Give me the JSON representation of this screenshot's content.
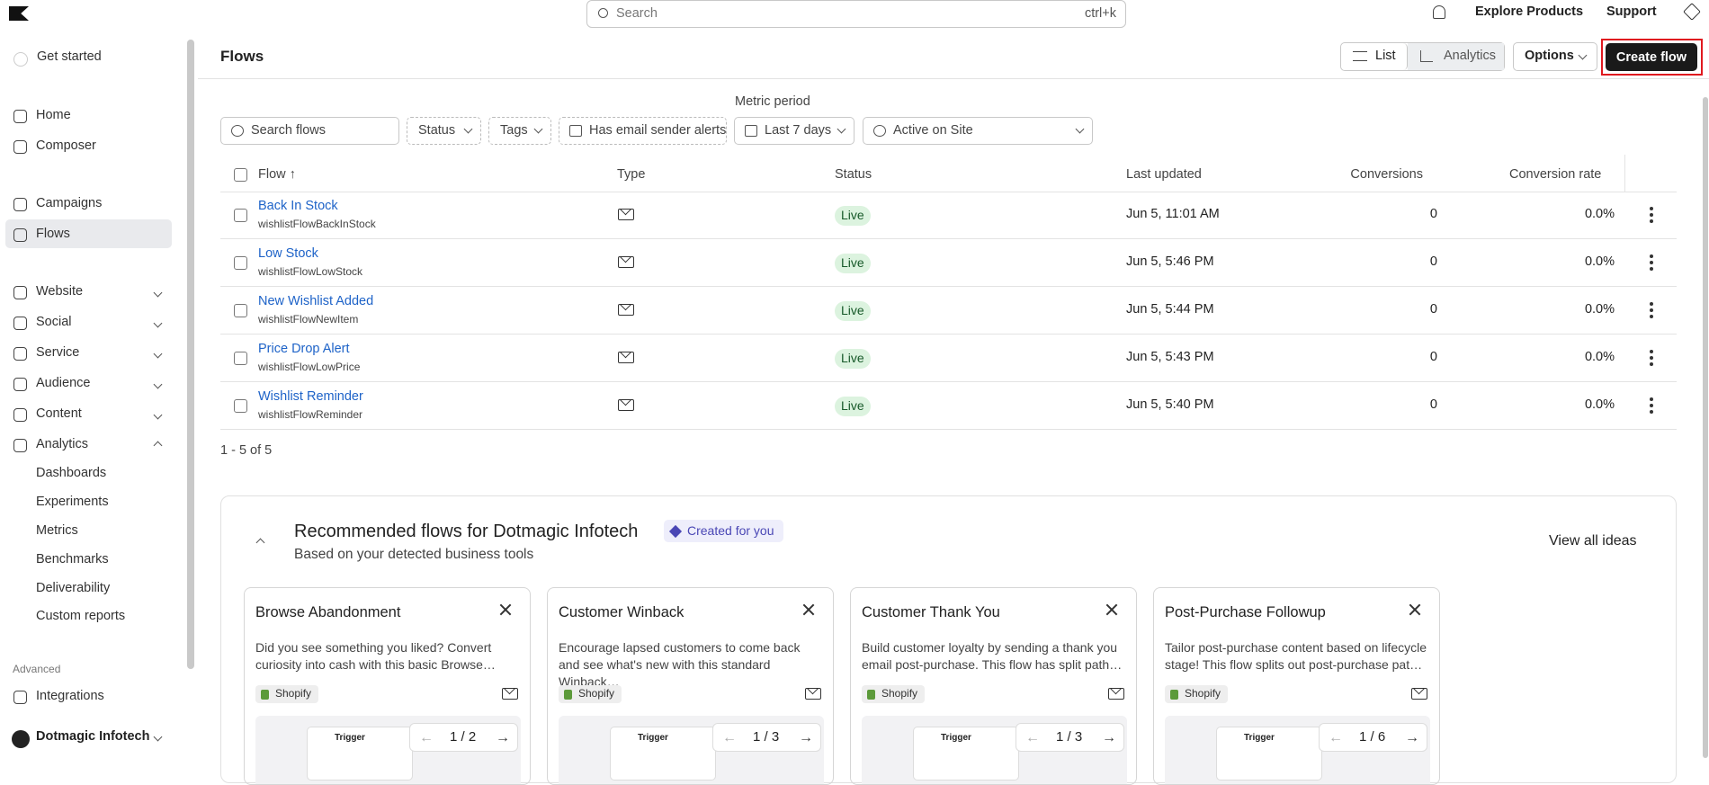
{
  "topbar": {
    "search_placeholder": "Search",
    "shortcut": "ctrl+k",
    "links": [
      "Explore Products",
      "Support"
    ]
  },
  "sidebar": {
    "get_started": "Get started",
    "nav": [
      "Home",
      "Composer",
      "Campaigns",
      "Flows"
    ],
    "sections": [
      "Website",
      "Social",
      "Service",
      "Audience",
      "Content",
      "Analytics"
    ],
    "analytics_sub": [
      "Dashboards",
      "Experiments",
      "Metrics",
      "Benchmarks",
      "Deliverability",
      "Custom reports"
    ],
    "advanced_label": "Advanced",
    "integrations": "Integrations",
    "account": "Dotmagic Infotech"
  },
  "header": {
    "title": "Flows",
    "view_toggle": [
      "List",
      "Analytics"
    ],
    "options": "Options",
    "create": "Create flow"
  },
  "filters": {
    "search": "Search flows",
    "status": "Status",
    "tags": "Tags",
    "alerts": "Has email sender alerts",
    "metric_period_label": "Metric period",
    "period": "Last 7 days",
    "metric": "Active on Site"
  },
  "table": {
    "columns": [
      "Flow ↑",
      "Type",
      "Status",
      "Last updated",
      "Conversions",
      "Conversion rate"
    ],
    "rows": [
      [
        "Back In Stock",
        "wishlistFlowBackInStock",
        "Live",
        "Jun 5, 11:01 AM",
        "0",
        "0.0%"
      ],
      [
        "Low Stock",
        "wishlistFlowLowStock",
        "Live",
        "Jun 5, 5:46 PM",
        "0",
        "0.0%"
      ],
      [
        "New Wishlist Added",
        "wishlistFlowNewItem",
        "Live",
        "Jun 5, 5:44 PM",
        "0",
        "0.0%"
      ],
      [
        "Price Drop Alert",
        "wishlistFlowLowPrice",
        "Live",
        "Jun 5, 5:43 PM",
        "0",
        "0.0%"
      ],
      [
        "Wishlist Reminder",
        "wishlistFlowReminder",
        "Live",
        "Jun 5, 5:40 PM",
        "0",
        "0.0%"
      ]
    ]
  },
  "pagination": "1 - 5 of 5",
  "recommended": {
    "title": "Recommended flows for Dotmagic Infotech",
    "badge": "Created for you",
    "subtitle": "Based on your detected business tools",
    "view_all": "View all ideas",
    "cards": [
      {
        "title": "Browse Abandonment",
        "description": "Did you see something you liked? Convert curiosity into cash with this basic Browse…",
        "tag": "Shopify",
        "page": "1 / 2",
        "preview": "Trigger"
      },
      {
        "title": "Customer Winback",
        "description": "Encourage lapsed customers to come back and see what's new with this standard Winback…",
        "tag": "Shopify",
        "page": "1 / 3",
        "preview": "Trigger"
      },
      {
        "title": "Customer Thank You",
        "description": "Build customer loyalty by sending a thank you email post-purchase. This flow has split path…",
        "tag": "Shopify",
        "page": "1 / 3",
        "preview": "Trigger"
      },
      {
        "title": "Post-Purchase Followup",
        "description": "Tailor post-purchase content based on lifecycle stage! This flow splits out post-purchase pat…",
        "tag": "Shopify",
        "page": "1 / 6",
        "preview": "Trigger"
      }
    ]
  }
}
